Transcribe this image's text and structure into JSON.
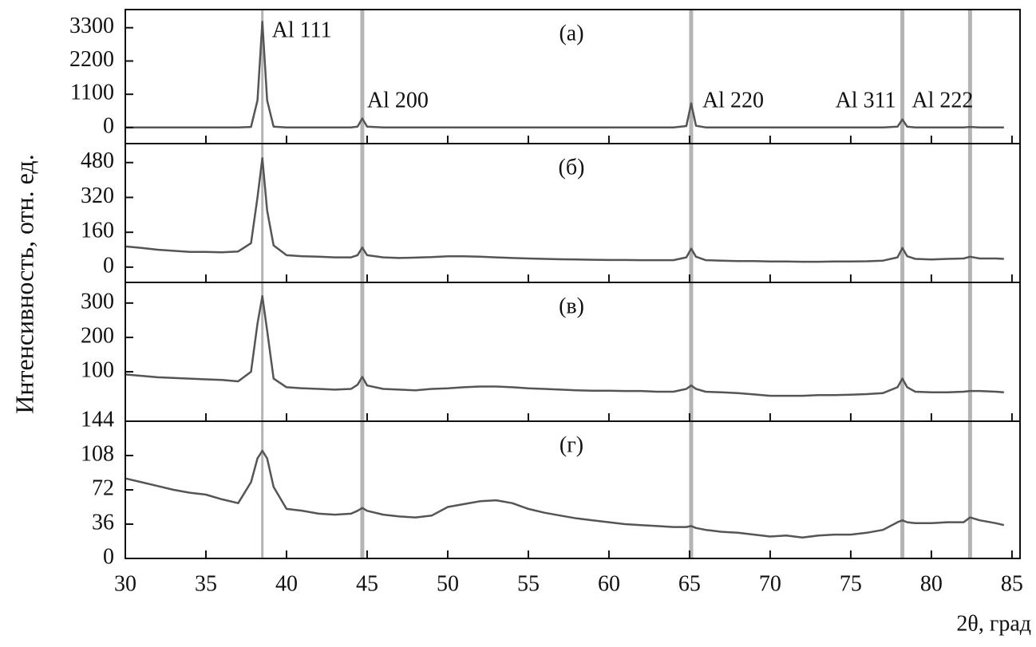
{
  "shared": {
    "xlabel": "2θ, град",
    "ylabel": "Интенсивность, отн. ед.",
    "xlim": [
      30,
      85.5
    ],
    "xticks": [
      30,
      35,
      40,
      45,
      50,
      55,
      60,
      65,
      70,
      75,
      80,
      85
    ],
    "reference_lines": {
      "x": [
        38.5,
        44.7,
        65.1,
        78.2,
        82.4
      ],
      "color": "#b4b4b4"
    }
  },
  "chart_data": [
    {
      "type": "line",
      "title": "(а)",
      "x": [
        30,
        31,
        32,
        33,
        34,
        35,
        36,
        37,
        37.8,
        38.2,
        38.5,
        38.8,
        39.2,
        40,
        41,
        42,
        43,
        44,
        44.4,
        44.7,
        45,
        46,
        47,
        48,
        49,
        50,
        51,
        52,
        53,
        54,
        55,
        56,
        57,
        58,
        59,
        60,
        61,
        62,
        63,
        64,
        64.8,
        65.1,
        65.4,
        66,
        67,
        68,
        69,
        70,
        71,
        72,
        73,
        74,
        75,
        76,
        77,
        77.9,
        78.2,
        78.5,
        79,
        80,
        81,
        82,
        82.4,
        83,
        84,
        84.5
      ],
      "series": [
        {
          "color": "#555555",
          "values": [
            5,
            5,
            5,
            5,
            5,
            5,
            5,
            5,
            20,
            900,
            3500,
            900,
            30,
            5,
            5,
            5,
            5,
            5,
            30,
            300,
            30,
            5,
            5,
            5,
            5,
            5,
            5,
            5,
            5,
            5,
            5,
            5,
            5,
            5,
            5,
            5,
            5,
            5,
            5,
            5,
            50,
            800,
            60,
            5,
            5,
            5,
            5,
            5,
            5,
            5,
            5,
            5,
            5,
            5,
            5,
            30,
            270,
            30,
            5,
            5,
            5,
            5,
            20,
            5,
            5,
            5
          ]
        }
      ],
      "ylim": [
        -530,
        3900
      ],
      "yticks": [
        0,
        1100,
        2200,
        3300
      ],
      "annotations": [
        {
          "text": "Al 111",
          "x": 38.5
        },
        {
          "text": "Al 200",
          "x": 44.7
        },
        {
          "text": "Al 220",
          "x": 65.1
        },
        {
          "text": "Al 311",
          "x": 78.2
        },
        {
          "text": "Al 222",
          "x": 82.4
        }
      ]
    },
    {
      "type": "line",
      "title": "(б)",
      "x": [
        30,
        31,
        32,
        33,
        34,
        35,
        36,
        37,
        37.8,
        38.2,
        38.5,
        38.8,
        39.2,
        40,
        41,
        42,
        43,
        44,
        44.4,
        44.7,
        45,
        46,
        47,
        48,
        49,
        50,
        51,
        52,
        53,
        54,
        55,
        56,
        57,
        58,
        59,
        60,
        61,
        62,
        63,
        64,
        64.8,
        65.1,
        65.4,
        66,
        67,
        68,
        69,
        70,
        71,
        72,
        73,
        74,
        75,
        76,
        77,
        77.9,
        78.2,
        78.5,
        79,
        80,
        81,
        82,
        82.4,
        83,
        84,
        84.5
      ],
      "series": [
        {
          "color": "#555555",
          "values": [
            95,
            88,
            80,
            75,
            70,
            70,
            68,
            72,
            110,
            320,
            500,
            260,
            100,
            55,
            50,
            48,
            45,
            45,
            55,
            90,
            55,
            45,
            42,
            44,
            46,
            50,
            50,
            48,
            45,
            42,
            40,
            38,
            36,
            35,
            34,
            33,
            33,
            32,
            32,
            32,
            45,
            85,
            48,
            32,
            30,
            28,
            28,
            26,
            26,
            25,
            25,
            26,
            26,
            27,
            30,
            45,
            88,
            50,
            38,
            35,
            38,
            40,
            48,
            40,
            40,
            38
          ]
        }
      ],
      "ylim": [
        -70,
        567
      ],
      "yticks": [
        0,
        160,
        320,
        480
      ]
    },
    {
      "type": "line",
      "title": "(в)",
      "x": [
        30,
        31,
        32,
        33,
        34,
        35,
        36,
        37,
        37.8,
        38.2,
        38.5,
        38.8,
        39.2,
        40,
        41,
        42,
        43,
        44,
        44.4,
        44.7,
        45,
        46,
        47,
        48,
        49,
        50,
        51,
        52,
        53,
        54,
        55,
        56,
        57,
        58,
        59,
        60,
        61,
        62,
        63,
        64,
        64.8,
        65.1,
        65.4,
        66,
        67,
        68,
        69,
        70,
        71,
        72,
        73,
        74,
        75,
        76,
        77,
        77.9,
        78.2,
        78.5,
        79,
        80,
        81,
        82,
        82.4,
        83,
        84,
        84.5
      ],
      "series": [
        {
          "color": "#555555",
          "values": [
            92,
            88,
            84,
            82,
            80,
            78,
            76,
            72,
            100,
            240,
            320,
            220,
            80,
            55,
            52,
            50,
            48,
            50,
            62,
            85,
            60,
            50,
            48,
            46,
            50,
            52,
            55,
            57,
            57,
            55,
            52,
            50,
            48,
            46,
            45,
            45,
            44,
            44,
            42,
            42,
            50,
            60,
            50,
            42,
            40,
            38,
            34,
            30,
            30,
            30,
            32,
            32,
            33,
            35,
            38,
            55,
            80,
            55,
            42,
            40,
            40,
            42,
            44,
            44,
            42,
            40
          ]
        }
      ],
      "ylim": [
        -44,
        360
      ],
      "yticks": [
        100,
        200,
        300
      ]
    },
    {
      "type": "line",
      "title": "(г)",
      "x": [
        30,
        31,
        32,
        33,
        34,
        35,
        36,
        37,
        37.8,
        38.2,
        38.5,
        38.8,
        39.2,
        40,
        41,
        42,
        43,
        44,
        44.4,
        44.7,
        45,
        46,
        47,
        48,
        49,
        50,
        51,
        52,
        53,
        54,
        55,
        56,
        57,
        58,
        59,
        60,
        61,
        62,
        63,
        64,
        64.8,
        65.1,
        65.4,
        66,
        67,
        68,
        69,
        70,
        71,
        72,
        73,
        74,
        75,
        76,
        77,
        77.9,
        78.2,
        78.5,
        79,
        80,
        81,
        82,
        82.4,
        83,
        84,
        84.5
      ],
      "series": [
        {
          "color": "#555555",
          "values": [
            84,
            80,
            76,
            72,
            69,
            67,
            62,
            58,
            80,
            105,
            113,
            105,
            75,
            52,
            50,
            47,
            46,
            47,
            50,
            53,
            50,
            46,
            44,
            43,
            45,
            54,
            57,
            60,
            61,
            58,
            52,
            48,
            45,
            42,
            40,
            38,
            36,
            35,
            34,
            33,
            33,
            34,
            32,
            30,
            28,
            27,
            25,
            23,
            24,
            22,
            24,
            25,
            25,
            27,
            30,
            38,
            40,
            38,
            37,
            37,
            38,
            38,
            43,
            40,
            37,
            35
          ]
        }
      ],
      "ylim": [
        0,
        144
      ],
      "yticks": [
        0,
        36,
        72,
        108,
        144
      ]
    }
  ]
}
